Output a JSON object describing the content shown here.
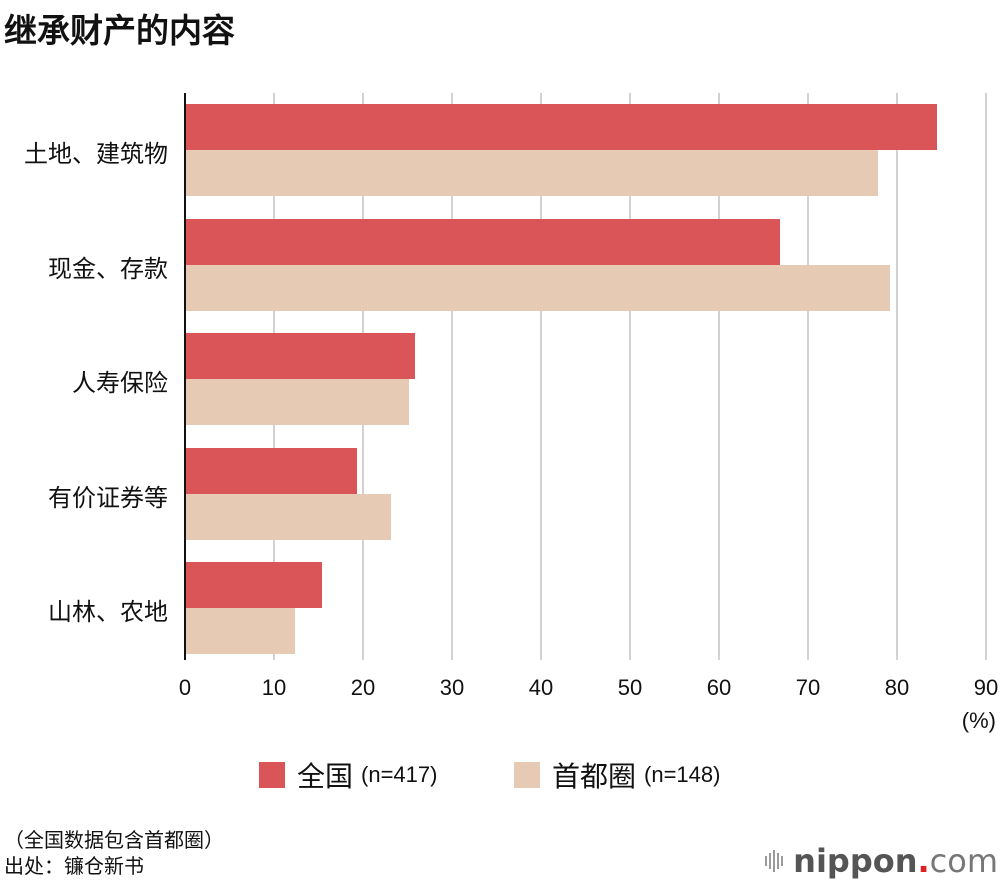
{
  "title": "继承财产的内容",
  "chart_data": {
    "type": "bar",
    "orientation": "horizontal",
    "title": "继承财产的内容",
    "categories": [
      "土地、建筑物",
      "现金、存款",
      "人寿保险",
      "有价证券等",
      "山林、农地"
    ],
    "series": [
      {
        "name": "全国 (n=417)",
        "label": "全国",
        "n": "(n=417)",
        "color": "#D95558",
        "values": [
          84.4,
          66.7,
          25.7,
          19.2,
          15.3
        ]
      },
      {
        "name": "首都圈 (n=148)",
        "label": "首都圈",
        "n": "(n=148)",
        "color": "#E6CAB3",
        "values": [
          77.8,
          79.1,
          25.1,
          23.0,
          12.2
        ]
      }
    ],
    "xlabel": "(%)",
    "ylabel": "",
    "xlim": [
      0,
      90
    ],
    "xticks": [
      "0",
      "10",
      "20",
      "30",
      "40",
      "50",
      "60",
      "70",
      "80",
      "90"
    ],
    "grid": true,
    "legend_position": "bottom"
  },
  "axis": {
    "unit": "(%)"
  },
  "notes": {
    "line1": "（全国数据包含首都圈）",
    "line2": "出处：镰仓新书"
  },
  "logo": {
    "name": "nippon",
    "dot": ".",
    "suffix": "com"
  }
}
